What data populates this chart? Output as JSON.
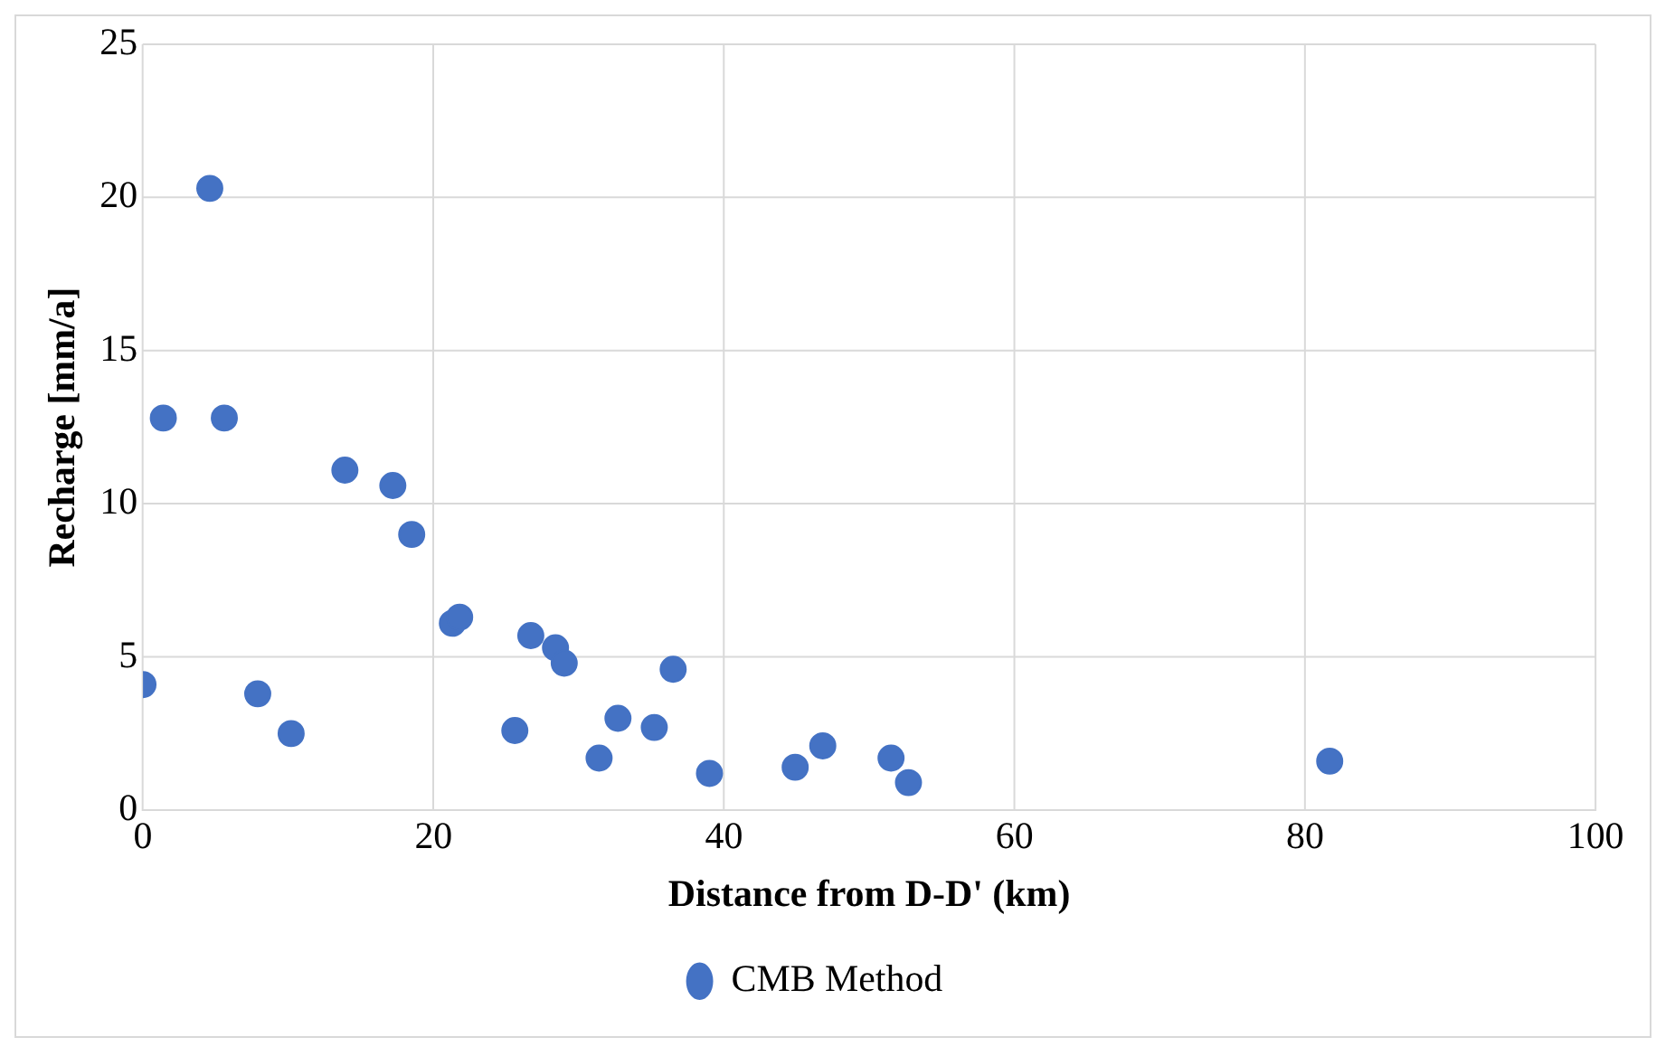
{
  "chart_data": {
    "type": "scatter",
    "xlabel": "Distance from D-D' (km)",
    "ylabel": "Recharge [mm/a]",
    "series": [
      {
        "name": "CMB Method",
        "color": "#4472c4",
        "x": [
          0,
          1.4,
          4.6,
          5.6,
          7.9,
          10.2,
          13.9,
          17.2,
          18.5,
          21.3,
          21.8,
          25.6,
          26.7,
          28.4,
          29.0,
          31.4,
          32.7,
          35.2,
          36.5,
          39.0,
          44.9,
          46.8,
          51.5,
          52.7,
          81.7
        ],
        "values": [
          4.1,
          12.8,
          20.3,
          12.8,
          3.8,
          2.5,
          11.1,
          10.6,
          9.0,
          6.1,
          6.3,
          2.6,
          5.7,
          5.3,
          4.8,
          1.7,
          3.0,
          2.7,
          4.6,
          1.2,
          1.4,
          2.1,
          1.7,
          0.9,
          1.6
        ]
      }
    ],
    "xlim": [
      0,
      100
    ],
    "xticks": [
      0,
      20,
      40,
      60,
      80,
      100
    ],
    "ylim": [
      0,
      25
    ],
    "yticks": [
      0,
      5,
      10,
      15,
      20,
      25
    ],
    "grid": true,
    "legend": "bottom",
    "marker": "circle"
  }
}
